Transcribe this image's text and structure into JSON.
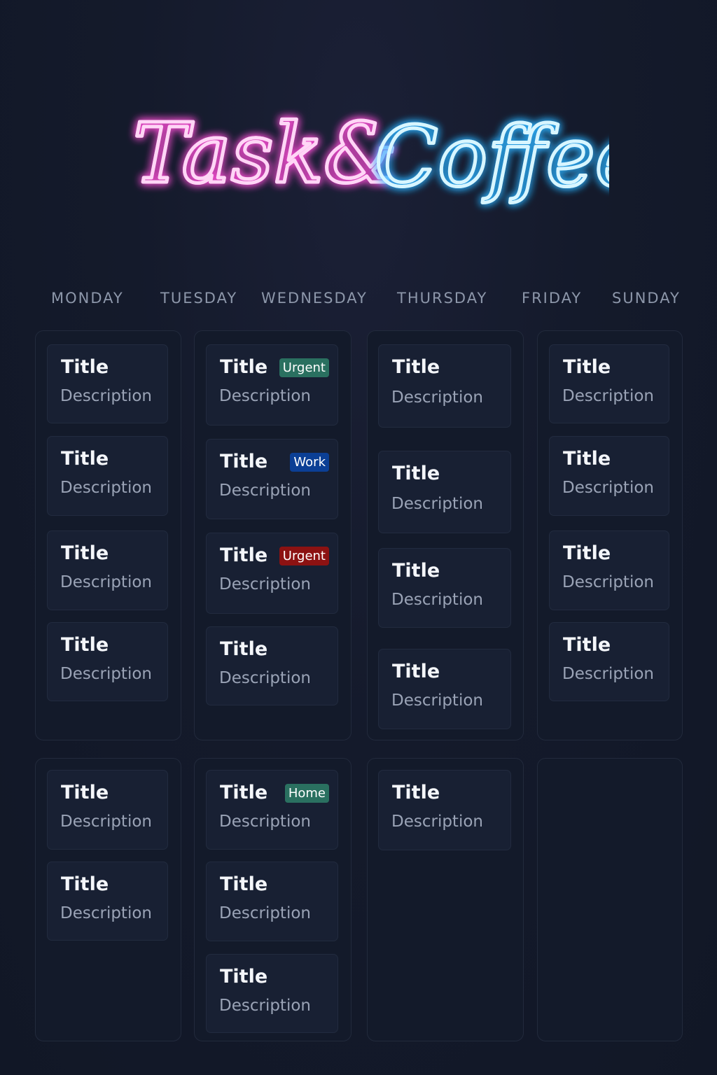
{
  "logo": {
    "part1": "Task&",
    "part2": "Coffee",
    "colors": {
      "pink": "#ff4fd8",
      "blue": "#3fc8ff"
    }
  },
  "days": [
    "MONDAY",
    "TUESDAY",
    "WEDNESDAY",
    "THURSDAY",
    "FRIDAY",
    "SUNDAY"
  ],
  "columns": [
    {
      "cards": [
        {
          "title": "Title",
          "description": "Description"
        },
        {
          "title": "Title",
          "description": "Description"
        },
        {
          "title": "Title",
          "description": "Description"
        },
        {
          "title": "Title",
          "description": "Description"
        }
      ]
    },
    {
      "cards": [
        {
          "title": "Title",
          "description": "Description",
          "badge": "Urgent",
          "badge_color": "#2a7060"
        },
        {
          "title": "Title",
          "description": "Description",
          "badge": "Work",
          "badge_color": "#0b3f95"
        },
        {
          "title": "Title",
          "description": "Description",
          "badge": "Urgent",
          "badge_color": "#8c1212"
        },
        {
          "title": "Title",
          "description": "Description"
        }
      ]
    },
    {
      "cards": [
        {
          "title": "Title",
          "description": "Description"
        },
        {
          "title": "Title",
          "description": "Description"
        },
        {
          "title": "Title",
          "description": "Description"
        },
        {
          "title": "Title",
          "description": "Description"
        }
      ]
    },
    {
      "cards": [
        {
          "title": "Title",
          "description": "Description"
        },
        {
          "title": "Title",
          "description": "Description"
        },
        {
          "title": "Title",
          "description": "Description"
        },
        {
          "title": "Title",
          "description": "Description"
        }
      ]
    },
    {
      "cards": [
        {
          "title": "Title",
          "description": "Description"
        },
        {
          "title": "Title",
          "description": "Description"
        }
      ]
    },
    {
      "cards": [
        {
          "title": "Title",
          "description": "Description",
          "badge": "Home",
          "badge_color": "#2a7060"
        },
        {
          "title": "Title",
          "description": "Description"
        },
        {
          "title": "Title",
          "description": "Description"
        }
      ]
    },
    {
      "cards": [
        {
          "title": "Title",
          "description": "Description"
        }
      ]
    },
    {
      "cards": []
    }
  ]
}
